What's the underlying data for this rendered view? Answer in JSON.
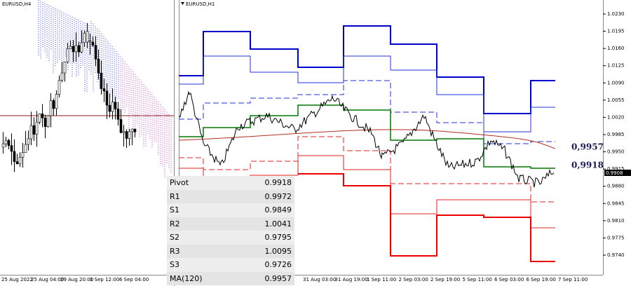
{
  "left_chart": {
    "symbol": "EURUSD,H4",
    "x_labels": [
      "25 Aug 2022",
      "25 Aug 04:00",
      "29 Aug 20:00",
      "1 Sep 12:00",
      "6 Sep 04:00"
    ]
  },
  "right_chart": {
    "symbol": "EURUSD,H1",
    "price_axis": [
      "1.0230",
      "1.0195",
      "1.0160",
      "1.0125",
      "1.0090",
      "1.0055",
      "1.0020",
      "0.9985",
      "0.9950",
      "0.9915",
      "0.9880",
      "0.9845",
      "0.9810",
      "0.9775",
      "0.9740"
    ],
    "current_price": "0.9908",
    "x_labels": [
      "31 Aug 03:00",
      "31 Aug 19:00",
      "1 Sep 11:00",
      "2 Sep 03:00",
      "2 Sep 19:00",
      "5 Sep 11:00",
      "6 Sep 03:00",
      "6 Sep 19:00",
      "7 Sep 11:00"
    ],
    "annotations": [
      "0,9957",
      "0,9918"
    ]
  },
  "table": {
    "rows": [
      [
        "Pivot",
        "0.9918"
      ],
      [
        "R1",
        "0.9972"
      ],
      [
        "S1",
        "0.9849"
      ],
      [
        "R2",
        "1.0041"
      ],
      [
        "S2",
        "0.9795"
      ],
      [
        "R3",
        "1.0095"
      ],
      [
        "S3",
        "0.9726"
      ],
      [
        "MA(120)",
        "0.9957"
      ]
    ]
  }
}
